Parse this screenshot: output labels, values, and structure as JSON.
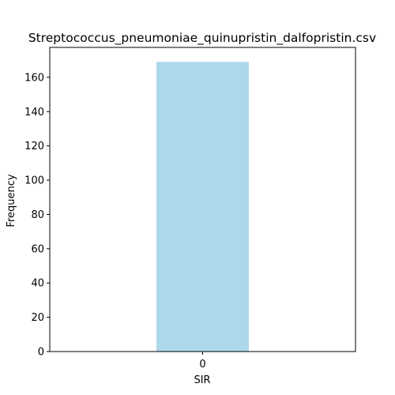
{
  "chart_data": {
    "type": "bar",
    "title": "Streptococcus_pneumoniae_quinupristin_dalfopristin.csv",
    "xlabel": "SIR",
    "ylabel": "Frequency",
    "categories": [
      "0"
    ],
    "values": [
      169
    ],
    "ylim": [
      0,
      177.45
    ],
    "yticks": [
      0,
      20,
      40,
      60,
      80,
      100,
      120,
      140,
      160
    ],
    "legend": "none",
    "grid": false,
    "colors": {
      "bar": "#add8ec",
      "axes": "#000000",
      "background": "#ffffff"
    }
  }
}
